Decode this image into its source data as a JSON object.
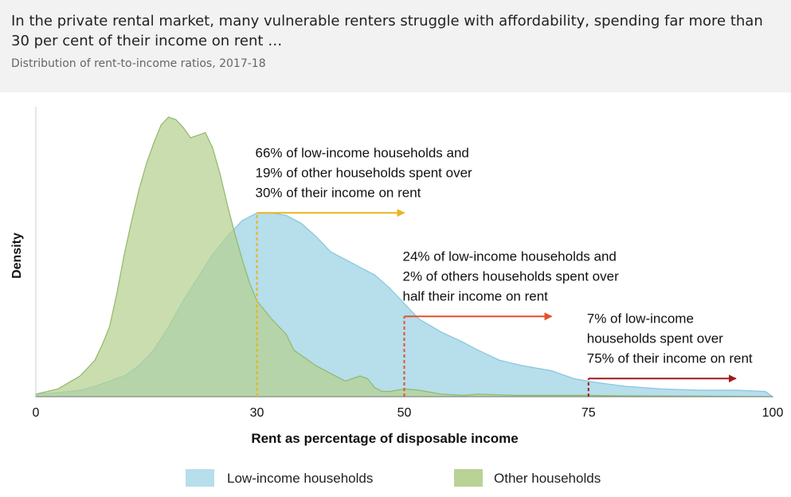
{
  "header": {
    "title": "In the private rental market, many vulnerable renters struggle with affordability, spending far more than 30 per cent of their income on rent …",
    "subtitle": "Distribution of rent-to-income ratios, 2017-18"
  },
  "chart_data": {
    "type": "area",
    "xlabel": "Rent as percentage of disposable income",
    "ylabel": "Density",
    "xlim": [
      0,
      100
    ],
    "ylim": [
      0,
      1.12
    ],
    "xticks": [
      0,
      30,
      50,
      75,
      100
    ],
    "grid": false,
    "legend_position": "bottom",
    "series": [
      {
        "name": "Low-income households",
        "color": "#a9d8e8",
        "x": [
          0,
          3,
          6,
          8,
          10,
          12,
          14,
          16,
          18,
          20,
          22,
          24,
          26,
          28,
          30,
          32,
          34,
          36,
          38,
          40,
          42,
          44,
          46,
          48,
          50,
          52,
          55,
          58,
          60,
          63,
          66,
          70,
          73,
          76,
          80,
          85,
          90,
          95,
          99,
          100
        ],
        "y": [
          0.01,
          0.015,
          0.025,
          0.04,
          0.06,
          0.08,
          0.12,
          0.18,
          0.27,
          0.37,
          0.46,
          0.55,
          0.62,
          0.68,
          0.71,
          0.71,
          0.7,
          0.67,
          0.62,
          0.56,
          0.53,
          0.5,
          0.47,
          0.42,
          0.36,
          0.3,
          0.25,
          0.21,
          0.18,
          0.14,
          0.12,
          0.1,
          0.07,
          0.055,
          0.04,
          0.03,
          0.025,
          0.025,
          0.02,
          0.0
        ]
      },
      {
        "name": "Other households",
        "color": "#b5d08f",
        "x": [
          0,
          3,
          6,
          8,
          9,
          10,
          11,
          12,
          13,
          14,
          15,
          16,
          17,
          18,
          19,
          20,
          21,
          22,
          23,
          24,
          25,
          26,
          27,
          28,
          29,
          30,
          32,
          34,
          35,
          36,
          38,
          40,
          42,
          44,
          45,
          46,
          47,
          48,
          50,
          52,
          55,
          58,
          60,
          65,
          70,
          75,
          80,
          90,
          100
        ],
        "y": [
          0.01,
          0.03,
          0.08,
          0.14,
          0.2,
          0.27,
          0.4,
          0.55,
          0.68,
          0.8,
          0.9,
          0.98,
          1.05,
          1.08,
          1.07,
          1.04,
          1.0,
          1.01,
          1.02,
          0.96,
          0.86,
          0.74,
          0.63,
          0.53,
          0.44,
          0.37,
          0.3,
          0.24,
          0.18,
          0.16,
          0.12,
          0.09,
          0.06,
          0.08,
          0.07,
          0.035,
          0.02,
          0.02,
          0.03,
          0.025,
          0.01,
          0.005,
          0.01,
          0.005,
          0.005,
          0.005,
          0.003,
          0.002,
          0.0
        ]
      }
    ],
    "markers": [
      {
        "x": 30,
        "color": "#e8b521",
        "arrow_to": 50,
        "arrow_y": 0.71,
        "text": [
          "66% of low-income households and",
          "19% of other households spent over",
          "30% of their income on rent"
        ]
      },
      {
        "x": 50,
        "color": "#e3502a",
        "arrow_to": 70,
        "arrow_y": 0.31,
        "text": [
          "24% of low-income households and",
          "2% of others households spent over",
          "half their income on rent"
        ]
      },
      {
        "x": 75,
        "color": "#9e1b1b",
        "arrow_to": 95,
        "arrow_y": 0.07,
        "text": [
          "7% of low-income",
          "households spent over",
          "75% of their income on rent"
        ]
      }
    ]
  }
}
